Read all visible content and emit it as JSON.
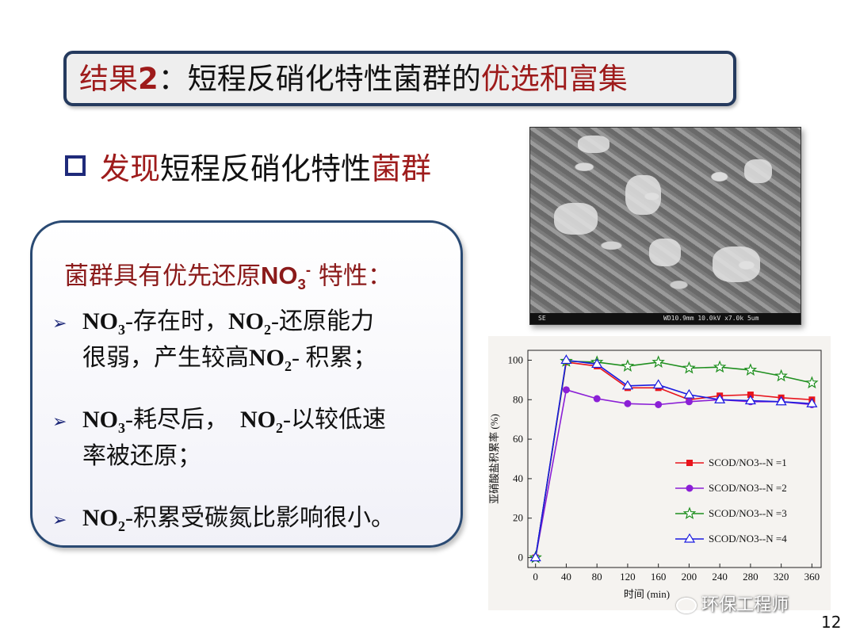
{
  "slide": {
    "title": {
      "part1": "结果",
      "part2": "2",
      "part3": "：短程反硝化特性菌群的",
      "part4": "优选和富集"
    },
    "heading": {
      "part1": "发现",
      "part2": "短程反硝化特性",
      "part3": "菌群"
    },
    "box": {
      "heading_part1": "菌群具有优先还原",
      "heading_no": "NO",
      "heading_sub": "3",
      "heading_sup": "-",
      "heading_part2": " 特性：",
      "bullets": [
        {
          "line1_a": "NO",
          "line1_a_sub": "3",
          "line1_b": "-存在时，",
          "line1_c": "NO",
          "line1_c_sub": "2",
          "line1_d": "-还原能力",
          "line2_a": "很弱，产生较高",
          "line2_b": "NO",
          "line2_b_sub": "2",
          "line2_c": "- 积累；"
        },
        {
          "line1_a": "NO",
          "line1_a_sub": "3",
          "line1_b": "-耗尽后，  ",
          "line1_c": "NO",
          "line1_c_sub": "2",
          "line1_d": "-以较低速",
          "line2_a": "率被还原；"
        },
        {
          "line1_a": "NO",
          "line1_a_sub": "2",
          "line1_b": "-积累受碳氮比影响很小。"
        }
      ]
    },
    "sem": {
      "label_left": "SE",
      "label_right": "WD10.9mm 10.0kV x7.0k  5um"
    },
    "watermark": "环保工程师",
    "page_number": "12"
  },
  "chart_data": {
    "type": "line",
    "x": [
      0,
      40,
      80,
      120,
      160,
      200,
      240,
      280,
      320,
      360
    ],
    "xlabel": "时间 (min)",
    "ylabel": "亚硝酸盐积累率 (%)",
    "xlim": [
      -10,
      372
    ],
    "ylim": [
      -5,
      105
    ],
    "yticks": [
      0,
      20,
      40,
      60,
      80,
      100
    ],
    "grid": false,
    "legend_position": "lower-right",
    "series": [
      {
        "name": "SCOD/NO3--N =1",
        "color": "#e8141c",
        "marker": "square",
        "values": [
          0,
          99,
          97,
          86,
          86,
          80,
          82,
          82.5,
          81,
          80
        ]
      },
      {
        "name": "SCOD/NO3--N =2",
        "color": "#8b1fd6",
        "marker": "circle",
        "values": [
          0,
          85,
          80.5,
          78,
          77.5,
          79,
          80,
          79,
          79,
          77.5
        ]
      },
      {
        "name": "SCOD/NO3--N =3",
        "color": "#1f8f1f",
        "marker": "star",
        "values": [
          0,
          99.5,
          99,
          97,
          99,
          96,
          96.5,
          95,
          92,
          88.5
        ]
      },
      {
        "name": "SCOD/NO3--N =4",
        "color": "#1a1adf",
        "marker": "triangle",
        "values": [
          0,
          100,
          98,
          87,
          87.5,
          82.5,
          80,
          79.5,
          79,
          78
        ]
      }
    ]
  }
}
